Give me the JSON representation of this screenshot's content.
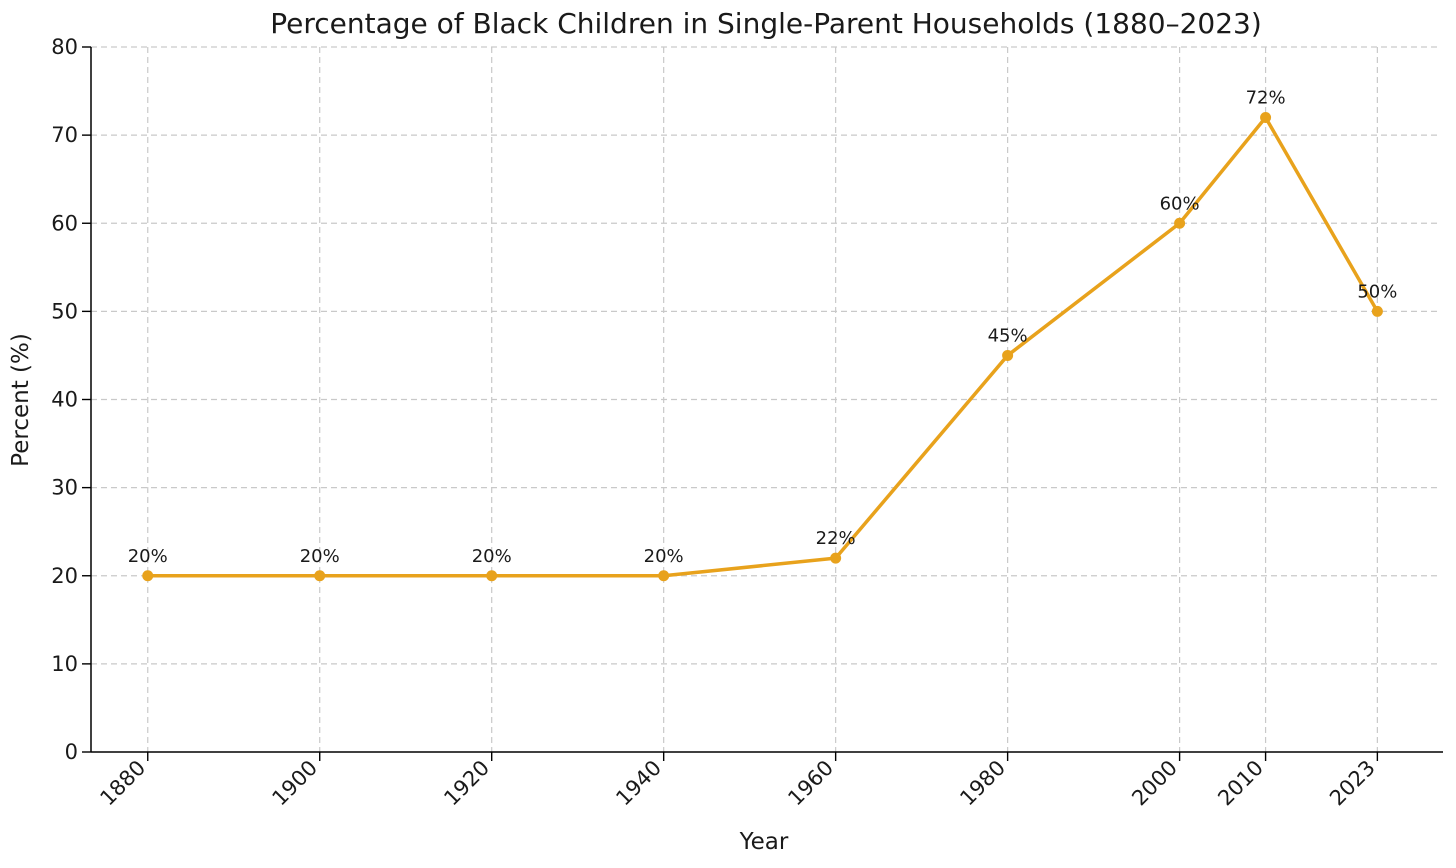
{
  "chart_data": {
    "type": "line",
    "title": "Percentage of Black Children in Single-Parent Households (1880–2023)",
    "xlabel": "Year",
    "ylabel": "Percent (%)",
    "x": [
      1880,
      1900,
      1920,
      1940,
      1960,
      1980,
      2000,
      2010,
      2023
    ],
    "values": [
      20,
      20,
      20,
      20,
      22,
      45,
      60,
      72,
      50
    ],
    "point_labels": [
      "20%",
      "20%",
      "20%",
      "20%",
      "22%",
      "45%",
      "60%",
      "72%",
      "50%"
    ],
    "x_tick_labels": [
      "1880",
      "1900",
      "1920",
      "1940",
      "1960",
      "1980",
      "2000",
      "2010",
      "2023"
    ],
    "y_ticks": [
      0,
      10,
      20,
      30,
      40,
      50,
      60,
      70,
      80
    ],
    "y_tick_labels": [
      "0",
      "10",
      "20",
      "30",
      "40",
      "50",
      "60",
      "70",
      "80"
    ],
    "xlim": [
      1873.4,
      2030.4
    ],
    "ylim": [
      0,
      80
    ],
    "grid": "dashed-both-axes",
    "legend": "none",
    "line_color": "#E8A21C",
    "marker": "circle",
    "grid_color": "#c9c9c9",
    "spine_color": "#000000",
    "text_color": "#1a1a1a",
    "background": "#ffffff"
  }
}
